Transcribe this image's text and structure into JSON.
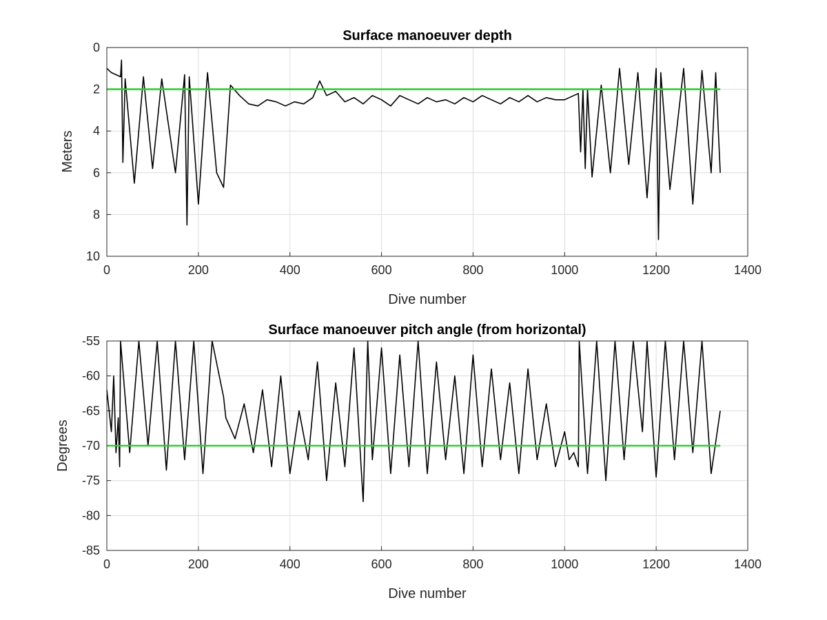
{
  "colors": {
    "series": "#000000",
    "reference_line": "#2ccf2c",
    "grid": "#dcdcdc",
    "axes": "#262626"
  },
  "chart_data": [
    {
      "type": "line",
      "title": "Surface manoeuver depth",
      "xlabel": "Dive number",
      "ylabel": "Meters",
      "xlim": [
        0,
        1400
      ],
      "ylim": [
        0,
        10
      ],
      "y_reversed": true,
      "grid": true,
      "xticks": [
        0,
        200,
        400,
        600,
        800,
        1000,
        1200,
        1400
      ],
      "yticks": [
        0,
        2,
        4,
        6,
        8,
        10
      ],
      "reference_line": {
        "y": 2,
        "x": [
          0,
          1340
        ]
      },
      "series": [
        {
          "x": [
            0,
            10,
            20,
            30,
            32,
            35,
            40,
            60,
            80,
            100,
            120,
            150,
            170,
            175,
            180,
            200,
            220,
            240,
            255,
            270,
            290,
            310,
            330,
            350,
            370,
            390,
            410,
            430,
            450,
            465,
            480,
            500,
            520,
            540,
            560,
            580,
            600,
            620,
            640,
            660,
            680,
            700,
            720,
            740,
            760,
            780,
            800,
            820,
            840,
            860,
            880,
            900,
            920,
            940,
            960,
            980,
            1000,
            1010,
            1020,
            1030,
            1035,
            1040,
            1045,
            1050,
            1060,
            1080,
            1100,
            1120,
            1140,
            1160,
            1180,
            1200,
            1205,
            1210,
            1230,
            1260,
            1280,
            1300,
            1320,
            1330,
            1340
          ],
          "y": [
            1.0,
            1.2,
            1.3,
            1.4,
            0.6,
            5.5,
            1.5,
            6.5,
            1.4,
            5.8,
            1.5,
            6.0,
            1.3,
            8.5,
            1.4,
            7.5,
            1.2,
            6.0,
            6.7,
            1.8,
            2.3,
            2.7,
            2.8,
            2.5,
            2.6,
            2.8,
            2.6,
            2.7,
            2.4,
            1.6,
            2.3,
            2.1,
            2.6,
            2.4,
            2.7,
            2.3,
            2.5,
            2.8,
            2.3,
            2.5,
            2.7,
            2.4,
            2.6,
            2.5,
            2.7,
            2.4,
            2.6,
            2.3,
            2.5,
            2.7,
            2.4,
            2.6,
            2.3,
            2.6,
            2.4,
            2.5,
            2.5,
            2.4,
            2.3,
            2.2,
            5.0,
            2.0,
            5.8,
            2.0,
            6.2,
            1.8,
            6.0,
            1.0,
            5.6,
            1.2,
            7.2,
            1.0,
            9.2,
            1.2,
            6.8,
            1.0,
            7.5,
            1.1,
            6.0,
            1.2,
            6.0
          ]
        }
      ]
    },
    {
      "type": "line",
      "title": "Surface manoeuver pitch angle (from horizontal)",
      "xlabel": "Dive number",
      "ylabel": "Degrees",
      "xlim": [
        0,
        1400
      ],
      "ylim": [
        -85,
        -55
      ],
      "grid": true,
      "xticks": [
        0,
        200,
        400,
        600,
        800,
        1000,
        1200,
        1400
      ],
      "yticks": [
        -55,
        -60,
        -65,
        -70,
        -75,
        -80,
        -85
      ],
      "reference_line": {
        "y": -70,
        "x": [
          0,
          1340
        ]
      },
      "series": [
        {
          "x": [
            0,
            5,
            10,
            15,
            20,
            25,
            28,
            30,
            50,
            70,
            90,
            110,
            130,
            150,
            170,
            190,
            210,
            230,
            255,
            260,
            280,
            300,
            320,
            340,
            360,
            380,
            400,
            420,
            440,
            460,
            480,
            500,
            520,
            540,
            560,
            570,
            580,
            600,
            620,
            640,
            660,
            680,
            700,
            720,
            740,
            760,
            780,
            800,
            820,
            840,
            860,
            880,
            900,
            920,
            940,
            960,
            980,
            1000,
            1010,
            1020,
            1030,
            1032,
            1050,
            1070,
            1090,
            1110,
            1130,
            1150,
            1170,
            1180,
            1200,
            1220,
            1240,
            1260,
            1280,
            1300,
            1320,
            1340
          ],
          "y": [
            -62,
            -65,
            -68,
            -60,
            -71,
            -66,
            -73,
            -55,
            -71,
            -55,
            -70,
            -55,
            -73.5,
            -55,
            -72,
            -55,
            -74,
            -55,
            -63,
            -66,
            -69,
            -64,
            -71,
            -62,
            -73,
            -60,
            -74,
            -65,
            -72,
            -58,
            -75,
            -61,
            -73,
            -56,
            -78,
            -55,
            -72,
            -56,
            -74,
            -57,
            -73,
            -55,
            -74,
            -58,
            -72,
            -60,
            -74,
            -57,
            -73,
            -59,
            -72,
            -61,
            -74,
            -59,
            -72,
            -64,
            -73,
            -68,
            -72,
            -71,
            -73,
            -55,
            -74,
            -55,
            -75,
            -55,
            -72,
            -55,
            -68,
            -55,
            -74.5,
            -55,
            -72,
            -55,
            -71,
            -55,
            -74,
            -65
          ]
        }
      ]
    }
  ]
}
